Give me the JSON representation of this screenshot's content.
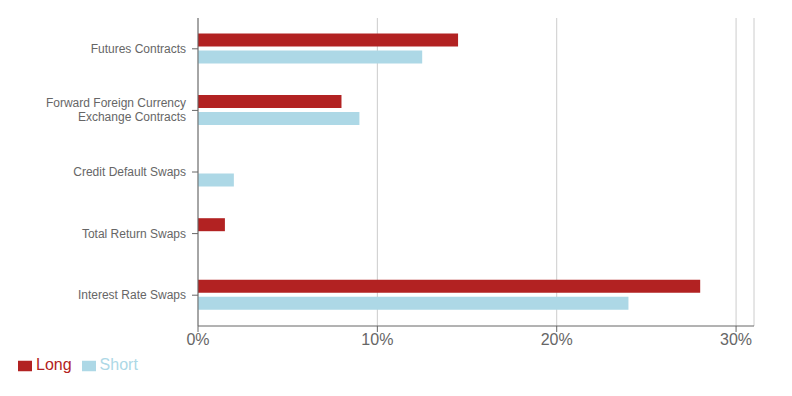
{
  "chart_data": {
    "type": "bar",
    "orientation": "horizontal",
    "categories": [
      "Futures Contracts",
      "Forward Foreign Currency\nExchange Contracts",
      "Credit Default Swaps",
      "Total Return Swaps",
      "Interest Rate Swaps"
    ],
    "series": [
      {
        "name": "Long",
        "color": "#B22222",
        "values": [
          14.5,
          8.0,
          0.0,
          1.5,
          28.0
        ]
      },
      {
        "name": "Short",
        "color": "#ADD8E6",
        "values": [
          12.5,
          9.0,
          2.0,
          0.0,
          24.0
        ]
      }
    ],
    "xlim": [
      0,
      31
    ],
    "xticks": [
      {
        "value": 0,
        "label": "0%"
      },
      {
        "value": 10,
        "label": "10%"
      },
      {
        "value": 20,
        "label": "20%"
      },
      {
        "value": 30,
        "label": "30%"
      }
    ],
    "grid": true,
    "legend": "lower left"
  }
}
